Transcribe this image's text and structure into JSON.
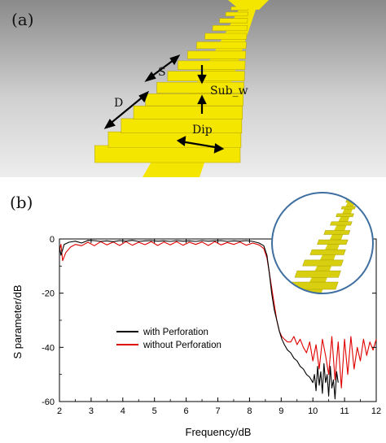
{
  "panel_a": {
    "label": "(a)",
    "dimensions": {
      "s": "S",
      "sub_w": "Sub_w",
      "d": "D",
      "dip": "Dip"
    }
  },
  "panel_b": {
    "label": "(b)"
  },
  "colors": {
    "with_perforation": "#000000",
    "without_perforation": "#e00000",
    "structure": "#f5e600",
    "inset_structure": "#d8cf10",
    "inset_ring": "#3e6fa0"
  },
  "chart_data": {
    "type": "line",
    "title": "",
    "xlabel": "Frequency/dB",
    "ylabel": "S parameter/dB",
    "xlim": [
      2,
      12
    ],
    "ylim": [
      -60,
      0
    ],
    "xticks": [
      2,
      3,
      4,
      5,
      6,
      7,
      8,
      9,
      10,
      11,
      12
    ],
    "yticks": [
      0,
      -20,
      -40,
      -60
    ],
    "grid": false,
    "legend_position": "lower-center",
    "series": [
      {
        "name": "with Perforation",
        "color": "#000000",
        "x": [
          2.0,
          2.05,
          2.15,
          2.3,
          2.5,
          2.7,
          2.9,
          3.1,
          3.3,
          3.5,
          3.7,
          3.9,
          4.1,
          4.3,
          4.5,
          4.7,
          4.9,
          5.1,
          5.3,
          5.5,
          5.7,
          5.9,
          6.1,
          6.3,
          6.5,
          6.7,
          6.9,
          7.1,
          7.3,
          7.5,
          7.7,
          7.9,
          8.1,
          8.3,
          8.45,
          8.55,
          8.62,
          8.7,
          8.78,
          8.86,
          8.94,
          9.02,
          9.1,
          9.2,
          9.3,
          9.4,
          9.5,
          9.6,
          9.7,
          9.8,
          9.9,
          10.0,
          10.05,
          10.1,
          10.15,
          10.2,
          10.25,
          10.3,
          10.35,
          10.4,
          10.45,
          10.5,
          10.55,
          10.6,
          10.65,
          10.7,
          10.75,
          10.8
        ],
        "y": [
          -3,
          -6,
          -2,
          -1.2,
          -0.8,
          -1.5,
          -0.5,
          -0.6,
          -0.9,
          -0.7,
          -1.0,
          -0.6,
          -0.8,
          -0.5,
          -0.9,
          -0.7,
          -0.6,
          -0.8,
          -0.7,
          -0.9,
          -0.6,
          -0.8,
          -0.7,
          -0.9,
          -0.6,
          -0.8,
          -0.7,
          -0.6,
          -0.9,
          -0.7,
          -0.8,
          -0.6,
          -0.9,
          -1.5,
          -2.5,
          -6,
          -12,
          -20,
          -26,
          -30,
          -34,
          -37,
          -39,
          -41,
          -42,
          -44,
          -45,
          -47,
          -48,
          -50,
          -51,
          -53,
          -50,
          -56,
          -47,
          -54,
          -49,
          -57,
          -46,
          -53,
          -50,
          -58,
          -47,
          -55,
          -52,
          -59,
          -49,
          -53
        ]
      },
      {
        "name": "without Perforation",
        "color": "#e00000",
        "x": [
          2.0,
          2.05,
          2.1,
          2.2,
          2.35,
          2.5,
          2.7,
          2.9,
          3.1,
          3.3,
          3.5,
          3.7,
          3.9,
          4.1,
          4.3,
          4.5,
          4.7,
          4.9,
          5.1,
          5.3,
          5.5,
          5.7,
          5.9,
          6.1,
          6.3,
          6.5,
          6.7,
          6.9,
          7.1,
          7.3,
          7.5,
          7.7,
          7.9,
          8.1,
          8.3,
          8.45,
          8.55,
          8.62,
          8.7,
          8.78,
          8.86,
          8.94,
          9.02,
          9.1,
          9.2,
          9.3,
          9.4,
          9.5,
          9.6,
          9.7,
          9.8,
          9.9,
          10.0,
          10.1,
          10.2,
          10.3,
          10.4,
          10.5,
          10.6,
          10.7,
          10.8,
          10.9,
          11.0,
          11.1,
          11.2,
          11.3,
          11.4,
          11.5,
          11.6,
          11.7,
          11.8,
          11.9,
          12.0
        ],
        "y": [
          -4,
          -2,
          -8,
          -5,
          -3,
          -2,
          -2.5,
          -1.2,
          -2.5,
          -1.0,
          -2.2,
          -1.1,
          -2.4,
          -1.0,
          -2.3,
          -1.2,
          -2.1,
          -1.0,
          -2.4,
          -1.1,
          -2.2,
          -1.0,
          -2.3,
          -1.2,
          -2.0,
          -1.1,
          -2.4,
          -1.0,
          -2.2,
          -1.3,
          -2.0,
          -1.1,
          -2.3,
          -1.5,
          -2.2,
          -3.5,
          -7,
          -12,
          -18,
          -24,
          -30,
          -34,
          -36,
          -37,
          -38,
          -38,
          -36,
          -39,
          -37,
          -40,
          -42,
          -38,
          -45,
          -39,
          -48,
          -37,
          -43,
          -50,
          -36,
          -52,
          -38,
          -55,
          -37,
          -50,
          -36,
          -48,
          -40,
          -45,
          -37,
          -43,
          -38,
          -41,
          -37
        ]
      }
    ]
  }
}
